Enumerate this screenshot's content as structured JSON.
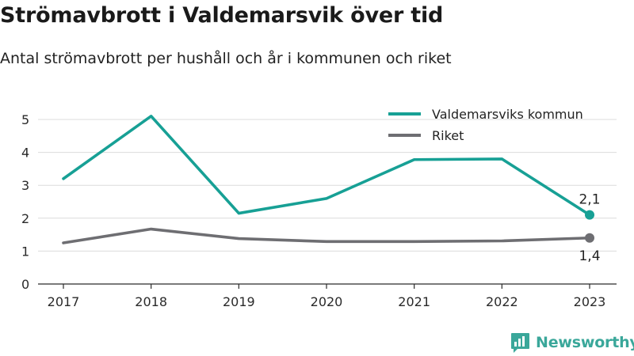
{
  "header": {
    "title": "Strömavbrott i Valdemarsvik över tid",
    "subtitle": "Antal strömavbrott per hushåll och år i kommunen och riket"
  },
  "chart_data": {
    "type": "line",
    "x": [
      "2017",
      "2018",
      "2019",
      "2020",
      "2021",
      "2022",
      "2023"
    ],
    "ylim": [
      0,
      5
    ],
    "yticks": [
      0,
      1,
      2,
      3,
      4,
      5
    ],
    "grid": true,
    "legend_position": "top-right",
    "series": [
      {
        "name": "Valdemarsviks kommun",
        "color": "#17a095",
        "values": [
          3.2,
          5.1,
          2.15,
          2.6,
          3.78,
          3.8,
          2.1
        ],
        "end_label": "2,1"
      },
      {
        "name": "Riket",
        "color": "#6e6e72",
        "values": [
          1.25,
          1.67,
          1.38,
          1.29,
          1.29,
          1.31,
          1.4
        ],
        "end_label": "1,4"
      }
    ]
  },
  "branding": {
    "name": "Newsworthy",
    "icon": "bar-chart-logo-icon",
    "color": "#3aa79a"
  }
}
